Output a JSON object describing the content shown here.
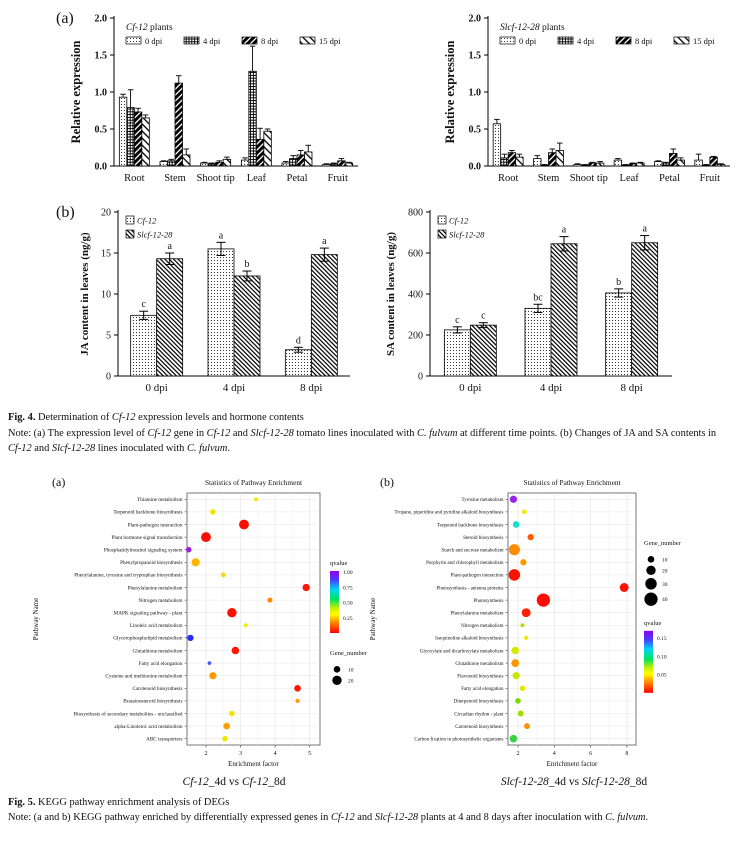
{
  "fig4": {
    "panel_a_label": "(a)",
    "panel_b_label": "(b)",
    "caption_line1": [
      {
        "t": "Fig. 4.",
        "b": true
      },
      {
        "t": " Determination of "
      },
      {
        "t": "Cf-12",
        "i": true
      },
      {
        "t": " expression levels and hormone contents"
      }
    ],
    "caption_note": [
      {
        "t": "Note: (a) The expression level of "
      },
      {
        "t": "Cf-12",
        "i": true
      },
      {
        "t": " gene in "
      },
      {
        "t": "Cf-12",
        "i": true
      },
      {
        "t": " and "
      },
      {
        "t": "Slcf-12-28",
        "i": true
      },
      {
        "t": " tomato lines inoculated with "
      },
      {
        "t": "C. fulvum",
        "i": true
      },
      {
        "t": " at different time points. (b) Changes of JA and SA contents in "
      },
      {
        "t": "Cf-12",
        "i": true
      },
      {
        "t": " and "
      },
      {
        "t": "Slcf-12-28",
        "i": true
      },
      {
        "t": " lines inoculated with "
      },
      {
        "t": "C. fulvum",
        "i": true
      },
      {
        "t": "."
      }
    ]
  },
  "fig5": {
    "caption_line1": [
      {
        "t": "Fig. 5.",
        "b": true
      },
      {
        "t": " KEGG pathway enrichment analysis of DEGs"
      }
    ],
    "caption_note": [
      {
        "t": "Note: (a and b) KEGG pathway enriched by differentially expressed genes in "
      },
      {
        "t": "Cf-12",
        "i": true
      },
      {
        "t": " and "
      },
      {
        "t": "Slcf-12-28",
        "i": true
      },
      {
        "t": " plants at 4 and 8 days after inoculation with "
      },
      {
        "t": "C. fulvum",
        "i": true
      },
      {
        "t": "."
      }
    ]
  },
  "chart_data": [
    {
      "id": "expr_cf12",
      "type": "bar",
      "legend_title_segments": [
        {
          "t": "Cf-12",
          "i": true
        },
        {
          "t": " plants"
        }
      ],
      "ylabel": "Relative expression",
      "ylim": [
        0,
        2
      ],
      "yticks": [
        0,
        0.5,
        1,
        1.5,
        2
      ],
      "ytick_decimals": 1,
      "categories": [
        "Root",
        "Stem",
        "Shoot tip",
        "Leaf",
        "Petal",
        "Fruit"
      ],
      "series": [
        {
          "name": "0 dpi",
          "values": [
            0.93,
            0.06,
            0.04,
            0.08,
            0.04,
            0.02
          ],
          "errors": [
            0.04,
            0.01,
            0.01,
            0.03,
            0.02,
            0.01
          ]
        },
        {
          "name": "4 dpi",
          "values": [
            0.79,
            0.07,
            0.03,
            1.28,
            0.1,
            0.03
          ],
          "errors": [
            0.24,
            0.02,
            0.01,
            0.34,
            0.04,
            0.01
          ]
        },
        {
          "name": "8 dpi",
          "values": [
            0.73,
            1.12,
            0.05,
            0.36,
            0.15,
            0.07
          ],
          "errors": [
            0.05,
            0.1,
            0.02,
            0.15,
            0.06,
            0.03
          ]
        },
        {
          "name": "15 dpi",
          "values": [
            0.65,
            0.15,
            0.09,
            0.47,
            0.19,
            0.04
          ],
          "errors": [
            0.04,
            0.08,
            0.03,
            0.03,
            0.09,
            0.01
          ]
        }
      ]
    },
    {
      "id": "expr_slcf",
      "type": "bar",
      "legend_title_segments": [
        {
          "t": "Slcf-12-28",
          "i": true
        },
        {
          "t": " plants"
        }
      ],
      "ylabel": "Relative expression",
      "ylim": [
        0,
        2
      ],
      "yticks": [
        0,
        0.5,
        1,
        1.5,
        2
      ],
      "ytick_decimals": 1,
      "categories": [
        "Root",
        "Stem",
        "Shoot tip",
        "Leaf",
        "Petal",
        "Fruit"
      ],
      "series": [
        {
          "name": "0 dpi",
          "values": [
            0.57,
            0.1,
            0.02,
            0.08,
            0.06,
            0.08
          ],
          "errors": [
            0.06,
            0.04,
            0.01,
            0.02,
            0.01,
            0.08
          ]
        },
        {
          "name": "4 dpi",
          "values": [
            0.11,
            0.01,
            0.01,
            0.01,
            0.04,
            0.01
          ],
          "errors": [
            0.05,
            0.01,
            0.01,
            0.01,
            0.01,
            0.01
          ]
        },
        {
          "name": "8 dpi",
          "values": [
            0.18,
            0.18,
            0.04,
            0.03,
            0.17,
            0.12
          ],
          "errors": [
            0.03,
            0.05,
            0.01,
            0.01,
            0.06,
            0.01
          ]
        },
        {
          "name": "15 dpi",
          "values": [
            0.12,
            0.21,
            0.04,
            0.04,
            0.08,
            0.02
          ],
          "errors": [
            0.04,
            0.1,
            0.02,
            0.01,
            0.03,
            0.01
          ]
        }
      ]
    },
    {
      "id": "ja",
      "type": "bar",
      "ylabel": "JA content in leaves (ng/g)",
      "ylim": [
        0,
        20
      ],
      "yticks": [
        0,
        5,
        10,
        15,
        20
      ],
      "ytick_decimals": 0,
      "categories": [
        "0 dpi",
        "4 dpi",
        "8 dpi"
      ],
      "series": [
        {
          "name": "Cf-12",
          "values": [
            7.4,
            15.5,
            3.2
          ],
          "errors": [
            0.5,
            0.8,
            0.3
          ],
          "letters": [
            "c",
            "a",
            "d"
          ]
        },
        {
          "name": "Slcf-12-28",
          "values": [
            14.3,
            12.2,
            14.8
          ],
          "errors": [
            0.7,
            0.6,
            0.8
          ],
          "letters": [
            "a",
            "b",
            "a"
          ]
        }
      ]
    },
    {
      "id": "sa",
      "type": "bar",
      "ylabel": "SA content  in leaves (ng/g)",
      "ylim": [
        0,
        800
      ],
      "yticks": [
        0,
        200,
        400,
        600,
        800
      ],
      "ytick_decimals": 0,
      "categories": [
        "0 dpi",
        "4 dpi",
        "8 dpi"
      ],
      "series": [
        {
          "name": "Cf-12",
          "values": [
            225,
            330,
            405
          ],
          "errors": [
            15,
            20,
            20
          ],
          "letters": [
            "c",
            "bc",
            "b"
          ]
        },
        {
          "name": "Slcf-12-28",
          "values": [
            248,
            645,
            650
          ],
          "errors": [
            12,
            35,
            35
          ],
          "letters": [
            "c",
            "a",
            "a"
          ]
        }
      ]
    },
    {
      "id": "kegg_a",
      "type": "scatter",
      "panel_label": "(a)",
      "title": "Statistics of Pathway Enrichment",
      "xlabel": "Enrichment factor",
      "ylabel": "Pathway Name",
      "xlim": [
        1.45,
        5.3
      ],
      "xticks": [
        2,
        3,
        4,
        5
      ],
      "comparison_segments": [
        {
          "t": "Cf-12",
          "i": true
        },
        {
          "t": "_4d vs "
        },
        {
          "t": "Cf-12",
          "i": true
        },
        {
          "t": "_8d"
        }
      ],
      "legend": {
        "order": [
          "qvalue",
          "gene"
        ],
        "qvalue_title": "qvalue",
        "qvalue_labels": [
          "1.00",
          "0.75",
          "0.50",
          "0.25"
        ],
        "qvalue_max": 1.02,
        "gene_title": "Gene_number",
        "gene_sizes": [
          10,
          20
        ]
      },
      "points": [
        {
          "pathway": "Thiamine metabolism",
          "ef": 3.45,
          "gene_number": 4,
          "qvalue": 0.25,
          "color": "#f2ea00"
        },
        {
          "pathway": "Terpenoid backbone biosynthesis",
          "ef": 2.2,
          "gene_number": 7,
          "qvalue": 0.24,
          "color": "#f2e400"
        },
        {
          "pathway": "Plant-pathogen interaction",
          "ef": 3.1,
          "gene_number": 22,
          "qvalue": 0.01,
          "color": "#fe0d00"
        },
        {
          "pathway": "Plant hormone signal transduction",
          "ef": 2.0,
          "gene_number": 22,
          "qvalue": 0.01,
          "color": "#fe0d00"
        },
        {
          "pathway": "Phosphatidylinositol signaling system",
          "ef": 1.5,
          "gene_number": 7,
          "qvalue": 0.95,
          "color": "#9b1fe0"
        },
        {
          "pathway": "Phenylpropanoid biosynthesis",
          "ef": 1.7,
          "gene_number": 15,
          "qvalue": 0.18,
          "color": "#ffb400"
        },
        {
          "pathway": "Phenylalanine, tyrosine and tryptophan biosynthesis",
          "ef": 2.5,
          "gene_number": 5,
          "qvalue": 0.22,
          "color": "#fcd200"
        },
        {
          "pathway": "Phenylalanine metabolism",
          "ef": 4.9,
          "gene_number": 12,
          "qvalue": 0.02,
          "color": "#fe1600"
        },
        {
          "pathway": "Nitrogen metabolism",
          "ef": 3.85,
          "gene_number": 6,
          "qvalue": 0.12,
          "color": "#ff8c00"
        },
        {
          "pathway": "MAPK signaling pathway - plant",
          "ef": 2.75,
          "gene_number": 20,
          "qvalue": 0.01,
          "color": "#fe0d00"
        },
        {
          "pathway": "Linoleic acid metabolism",
          "ef": 3.15,
          "gene_number": 4,
          "qvalue": 0.25,
          "color": "#f2ea00"
        },
        {
          "pathway": "Glycerophospholipid metabolism",
          "ef": 1.55,
          "gene_number": 9,
          "qvalue": 0.72,
          "color": "#2b2bfa"
        },
        {
          "pathway": "Glutathione metabolism",
          "ef": 2.85,
          "gene_number": 13,
          "qvalue": 0.02,
          "color": "#fe1600"
        },
        {
          "pathway": "Fatty acid elongation",
          "ef": 2.1,
          "gene_number": 3,
          "qvalue": 0.7,
          "color": "#3c5af0"
        },
        {
          "pathway": "Cysteine and methionine metabolism",
          "ef": 2.2,
          "gene_number": 12,
          "qvalue": 0.15,
          "color": "#ff9c00"
        },
        {
          "pathway": "Carotenoid biosynthesis",
          "ef": 4.65,
          "gene_number": 10,
          "qvalue": 0.02,
          "color": "#fe1600"
        },
        {
          "pathway": "Brassinosteroid biosynthesis",
          "ef": 4.65,
          "gene_number": 4,
          "qvalue": 0.15,
          "color": "#ff9c00"
        },
        {
          "pathway": "Biosynthesis of secondary metabolites - unclassified",
          "ef": 2.75,
          "gene_number": 7,
          "qvalue": 0.25,
          "color": "#f2e400"
        },
        {
          "pathway": "alpha-Linolenic acid metabolism",
          "ef": 2.6,
          "gene_number": 10,
          "qvalue": 0.13,
          "color": "#ffa000"
        },
        {
          "pathway": "ABC transporters",
          "ef": 2.55,
          "gene_number": 7,
          "qvalue": 0.25,
          "color": "#f2e400"
        }
      ]
    },
    {
      "id": "kegg_b",
      "type": "scatter",
      "panel_label": "(b)",
      "title": "Statistics of Pathway Enrichment",
      "xlabel": "Enrichment factor",
      "ylabel": "Pathway Name",
      "xlim": [
        1.45,
        8.5
      ],
      "xticks": [
        2,
        4,
        6,
        8
      ],
      "comparison_segments": [
        {
          "t": "Slcf-12-28",
          "i": true
        },
        {
          "t": "_4d vs "
        },
        {
          "t": "Slcf-12-28",
          "i": true
        },
        {
          "t": "_8d"
        }
      ],
      "legend": {
        "order": [
          "gene",
          "qvalue"
        ],
        "qvalue_title": "qvalue",
        "qvalue_labels": [
          "0.15",
          "0.10",
          "0.05"
        ],
        "qvalue_max": 0.17,
        "gene_title": "Gene_number",
        "gene_sizes": [
          10,
          20,
          30,
          40
        ]
      },
      "points": [
        {
          "pathway": "Tyrosine metabolism",
          "ef": 1.75,
          "gene_number": 12,
          "qvalue": 0.16,
          "color": "#9a27e8"
        },
        {
          "pathway": "Tropane, piperidine and pyridine alkaloid biosynthesis",
          "ef": 2.35,
          "gene_number": 5,
          "qvalue": 0.05,
          "color": "#f2ee00"
        },
        {
          "pathway": "Terpenoid backbone biosynthesis",
          "ef": 1.9,
          "gene_number": 10,
          "qvalue": 0.11,
          "color": "#17e0c8"
        },
        {
          "pathway": "Steroid biosynthesis",
          "ef": 2.7,
          "gene_number": 9,
          "qvalue": 0.02,
          "color": "#ff5a00"
        },
        {
          "pathway": "Starch and sucrose metabolism",
          "ef": 1.8,
          "gene_number": 28,
          "qvalue": 0.03,
          "color": "#ff8c00"
        },
        {
          "pathway": "Porphyrin and chlorophyll metabolism",
          "ef": 2.3,
          "gene_number": 9,
          "qvalue": 0.03,
          "color": "#ff9800"
        },
        {
          "pathway": "Plant-pathogen interaction",
          "ef": 1.8,
          "gene_number": 30,
          "qvalue": 0.005,
          "color": "#fe1200"
        },
        {
          "pathway": "Photosynthesis - antenna proteins",
          "ef": 7.85,
          "gene_number": 18,
          "qvalue": 0.005,
          "color": "#fe1200"
        },
        {
          "pathway": "Photosynthesis",
          "ef": 3.4,
          "gene_number": 40,
          "qvalue": 0.003,
          "color": "#fe0d00"
        },
        {
          "pathway": "Phenylalanine metabolism",
          "ef": 2.45,
          "gene_number": 18,
          "qvalue": 0.008,
          "color": "#fe2000"
        },
        {
          "pathway": "Nitrogen metabolism",
          "ef": 2.25,
          "gene_number": 4,
          "qvalue": 0.07,
          "color": "#b4e000"
        },
        {
          "pathway": "Isoquinoline alkaloid biosynthesis",
          "ef": 2.45,
          "gene_number": 4,
          "qvalue": 0.05,
          "color": "#eeea00"
        },
        {
          "pathway": "Glyoxylate and dicarboxylate metabolism",
          "ef": 1.85,
          "gene_number": 13,
          "qvalue": 0.06,
          "color": "#d5ea00"
        },
        {
          "pathway": "Glutathione metabolism",
          "ef": 1.85,
          "gene_number": 14,
          "qvalue": 0.03,
          "color": "#ff9800"
        },
        {
          "pathway": "Flavonoid biosynthesis",
          "ef": 1.9,
          "gene_number": 12,
          "qvalue": 0.06,
          "color": "#c7e800"
        },
        {
          "pathway": "Fatty acid elongation",
          "ef": 2.25,
          "gene_number": 7,
          "qvalue": 0.05,
          "color": "#e9e600"
        },
        {
          "pathway": "Diterpenoid biosynthesis",
          "ef": 2.0,
          "gene_number": 7,
          "qvalue": 0.08,
          "color": "#7ed800"
        },
        {
          "pathway": "Circadian rhythm - plant",
          "ef": 2.15,
          "gene_number": 8,
          "qvalue": 0.07,
          "color": "#a4dc00"
        },
        {
          "pathway": "Carotenoid biosynthesis",
          "ef": 2.5,
          "gene_number": 8,
          "qvalue": 0.03,
          "color": "#ff9100"
        },
        {
          "pathway": "Carbon fixation in photosynthetic organisms",
          "ef": 1.75,
          "gene_number": 13,
          "qvalue": 0.09,
          "color": "#3ecf40"
        }
      ]
    }
  ]
}
